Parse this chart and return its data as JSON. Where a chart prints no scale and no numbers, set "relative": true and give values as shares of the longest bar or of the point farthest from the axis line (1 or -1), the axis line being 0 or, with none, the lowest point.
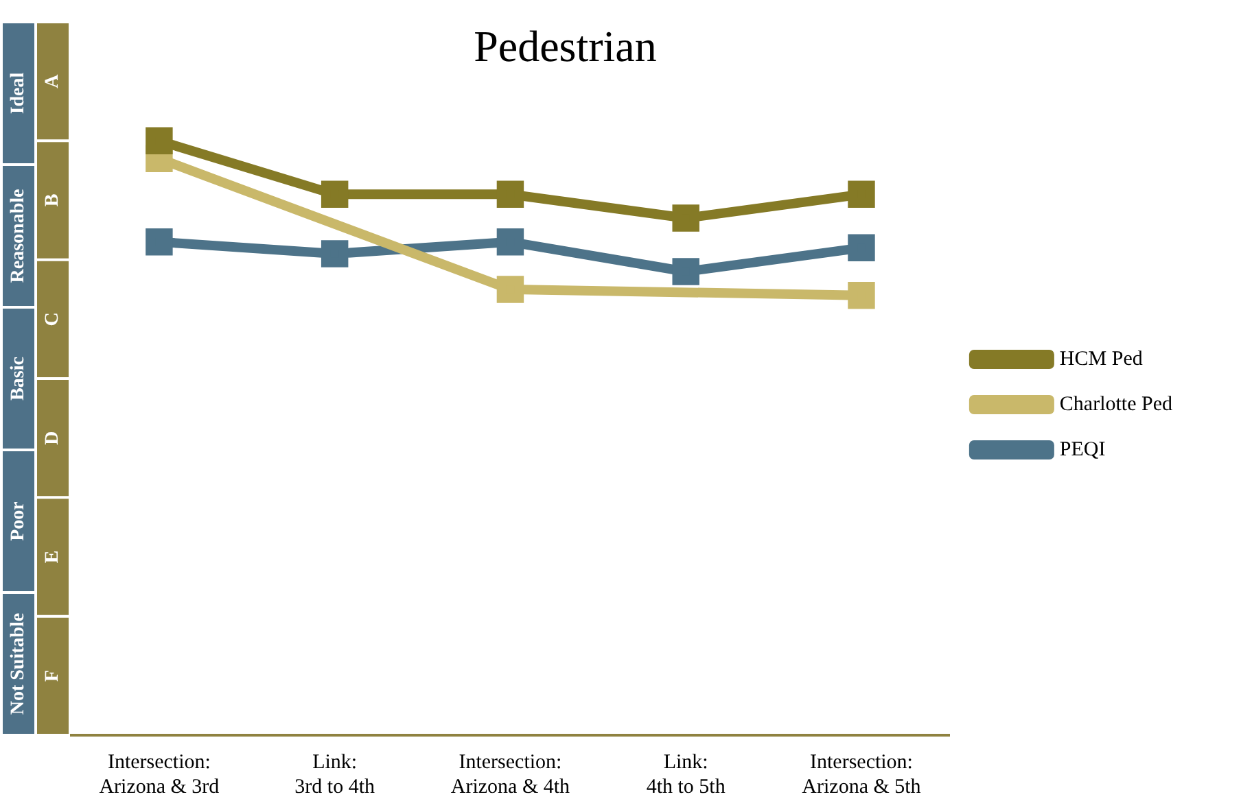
{
  "chart_data": {
    "type": "line",
    "title": "Pedestrian",
    "relative": true,
    "categories": [
      "Intersection:\nArizona & 3rd",
      "Link:\n3rd to 4th",
      "Intersection:\nArizona & 4th",
      "Link:\n4th to 5th",
      "Intersection:\nArizona & 5th"
    ],
    "series": [
      {
        "name": "HCM Ped",
        "color": "#857a26",
        "values": [
          1,
          0.91,
          0.91,
          0.87,
          0.91
        ]
      },
      {
        "name": "Charlotte Ped",
        "color": "#c9b86a",
        "values": [
          0.97,
          null,
          0.75,
          null,
          0.74
        ]
      },
      {
        "name": "PEQI",
        "color": "#4d7389",
        "values": [
          0.83,
          0.81,
          0.83,
          0.78,
          0.82
        ]
      }
    ],
    "annotations": [
      "A",
      "B",
      "C",
      "D",
      "E",
      "F",
      "Ideal",
      "Reasonable",
      "Basic",
      "Poor",
      "Not Suitable"
    ],
    "marker": "square",
    "line_style": "solid",
    "legend": "right"
  }
}
